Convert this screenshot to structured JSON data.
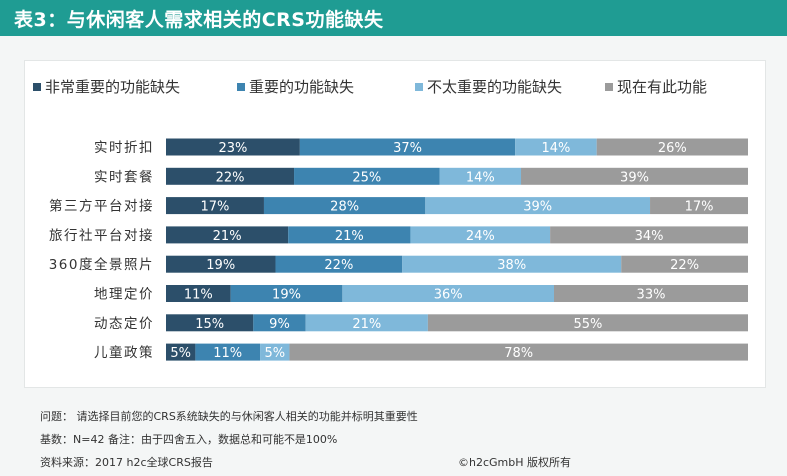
{
  "header": {
    "title": "表3：与休闲客人需求相关的CRS功能缺失"
  },
  "colors": {
    "header_bg": "#1f9c93",
    "series": [
      "#2c4f6a",
      "#3d84b0",
      "#7fb8da",
      "#9b9b9b"
    ]
  },
  "chart_data": {
    "type": "bar",
    "orientation": "horizontal",
    "stacked": true,
    "percent_stacked": true,
    "legend_position": "top",
    "categories": [
      "实时折扣",
      "实时套餐",
      "第三方平台对接",
      "旅行社平台对接",
      "360度全景照片",
      "地理定价",
      "动态定价",
      "儿童政策"
    ],
    "series": [
      {
        "name": "非常重要的功能缺失",
        "values": [
          23,
          22,
          17,
          21,
          19,
          11,
          15,
          5
        ]
      },
      {
        "name": "重要的功能缺失",
        "values": [
          37,
          25,
          28,
          21,
          22,
          19,
          9,
          11
        ]
      },
      {
        "name": "不太重要的功能缺失",
        "values": [
          14,
          14,
          39,
          24,
          38,
          36,
          21,
          5
        ]
      },
      {
        "name": "现在有此功能",
        "values": [
          26,
          39,
          17,
          34,
          22,
          33,
          55,
          78
        ]
      }
    ],
    "value_suffix": "%"
  },
  "footer": {
    "question": "问题： 请选择目前您的CRS系统缺失的与休闲客人相关的功能并标明其重要性",
    "base": "基数：N=42 备注：由于四舍五入，数据总和可能不是100%",
    "source": "资料来源：2017 h2c全球CRS报告",
    "copyright": "©h2cGmbH 版权所有"
  }
}
